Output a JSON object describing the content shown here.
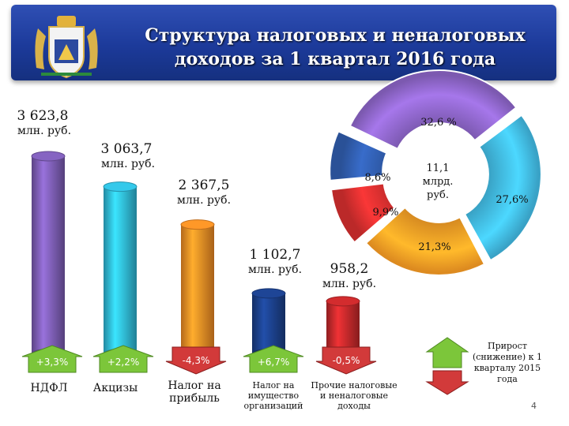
{
  "header": {
    "title_line1": "Структура налоговых и неналоговых",
    "title_line2": "доходов за 1 квартал 2016 года"
  },
  "colors": {
    "header": "#1f3c9e",
    "increase_arrow": "#7cc63a",
    "decrease_arrow": "#d23a3a",
    "bars": [
      "#7a5bb0",
      "#2fb7d6",
      "#f08a24",
      "#1b3f88",
      "#c0282a"
    ],
    "donut": [
      "#8a63c4",
      "#3fb4dc",
      "#f59a24",
      "#d02e2e",
      "#2f5aa8"
    ]
  },
  "chart_data": [
    {
      "type": "bar",
      "categories": [
        "НДФЛ",
        "Акцизы",
        "Налог на прибыль",
        "Налог на имущество организаций",
        "Прочие налоговые и неналоговые доходы"
      ],
      "values": [
        3623.8,
        3063.7,
        2367.5,
        1102.7,
        958.2
      ],
      "value_labels": [
        "3 623,8",
        "3 063,7",
        "2 367,5",
        "1 102,7",
        "958,2"
      ],
      "unit_label": "млн. руб.",
      "change_labels": [
        "+3,3%",
        "+2,2%",
        "-4,3%",
        "+6,7%",
        "-0,5%"
      ],
      "change_direction": [
        "up",
        "up",
        "down",
        "up",
        "down"
      ],
      "legend": "Прирост (снижение) к 1 кварталу 2015 года"
    },
    {
      "type": "pie",
      "donut": true,
      "center_label": "11,1 млрд. руб.",
      "slices": [
        {
          "label": "32,6 %",
          "value": 32.6
        },
        {
          "label": "27,6%",
          "value": 27.6
        },
        {
          "label": "21,3%",
          "value": 21.3
        },
        {
          "label": "9,9%",
          "value": 9.9
        },
        {
          "label": "8,6%",
          "value": 8.6
        }
      ]
    }
  ],
  "page_number": "4"
}
